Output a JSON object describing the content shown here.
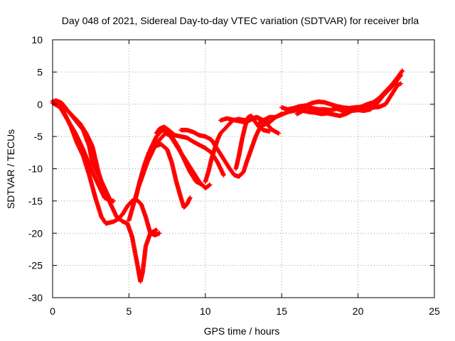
{
  "chart_data": {
    "type": "scatter",
    "title": "Day 048 of 2021, Sidereal Day-to-day VTEC variation (SDTVAR) for receiver brla",
    "xlabel": "GPS time / hours",
    "ylabel": "SDTVAR / TECUs",
    "xlim": [
      0,
      25
    ],
    "ylim": [
      -30,
      10
    ],
    "xticks": [
      0,
      5,
      10,
      15,
      20,
      25
    ],
    "yticks": [
      -30,
      -25,
      -20,
      -15,
      -10,
      -5,
      0,
      5,
      10
    ],
    "grid": true,
    "marker": "plus",
    "color": "#ff0000",
    "tracks": [
      {
        "points": [
          [
            0.0,
            0.5
          ],
          [
            0.4,
            0.3
          ],
          [
            0.8,
            -1.5
          ],
          [
            1.2,
            -3.5
          ],
          [
            1.6,
            -6.0
          ],
          [
            2.0,
            -8.0
          ],
          [
            2.4,
            -11.0
          ],
          [
            2.8,
            -14.5
          ],
          [
            3.2,
            -17.5
          ],
          [
            3.5,
            -18.5
          ],
          [
            4.0,
            -18.2
          ],
          [
            4.3,
            -17.8
          ],
          [
            4.6,
            -17.0
          ]
        ]
      },
      {
        "points": [
          [
            0.0,
            0.2
          ],
          [
            0.5,
            -0.5
          ],
          [
            1.0,
            -2.5
          ],
          [
            1.5,
            -4.5
          ],
          [
            2.0,
            -7.0
          ],
          [
            2.5,
            -10.0
          ],
          [
            3.0,
            -12.5
          ],
          [
            3.4,
            -14.5
          ],
          [
            3.8,
            -15.0
          ],
          [
            4.0,
            -15.0
          ]
        ]
      },
      {
        "points": [
          [
            0.2,
            0.6
          ],
          [
            0.6,
            0.2
          ],
          [
            1.0,
            -1.0
          ],
          [
            1.5,
            -2.5
          ],
          [
            2.0,
            -4.0
          ],
          [
            2.4,
            -6.5
          ],
          [
            2.6,
            -9.0
          ],
          [
            3.0,
            -11.0
          ],
          [
            3.4,
            -13.0
          ],
          [
            3.8,
            -15.5
          ],
          [
            4.2,
            -17.5
          ],
          [
            4.6,
            -18.2
          ],
          [
            4.9,
            -18.5
          ],
          [
            5.2,
            -20.5
          ],
          [
            5.4,
            -23.0
          ],
          [
            5.6,
            -25.5
          ],
          [
            5.75,
            -27.5
          ],
          [
            5.9,
            -26.0
          ],
          [
            6.1,
            -22.0
          ],
          [
            6.4,
            -20.0
          ],
          [
            6.8,
            -19.5
          ]
        ]
      },
      {
        "points": [
          [
            0.2,
            0.5
          ],
          [
            0.5,
            0.3
          ],
          [
            0.9,
            -0.8
          ],
          [
            1.4,
            -2.0
          ],
          [
            1.8,
            -3.0
          ],
          [
            2.2,
            -4.5
          ],
          [
            2.6,
            -6.5
          ],
          [
            2.8,
            -8.5
          ],
          [
            3.0,
            -10.5
          ],
          [
            3.2,
            -12.0
          ],
          [
            3.5,
            -13.5
          ],
          [
            3.8,
            -15.0
          ]
        ]
      },
      {
        "points": [
          [
            4.6,
            -17.0
          ],
          [
            4.9,
            -15.8
          ],
          [
            5.2,
            -15.0
          ],
          [
            5.5,
            -14.8
          ],
          [
            5.8,
            -15.5
          ],
          [
            6.1,
            -17.5
          ],
          [
            6.4,
            -20.0
          ],
          [
            6.7,
            -20.3
          ],
          [
            7.0,
            -20.0
          ]
        ]
      },
      {
        "points": [
          [
            5.0,
            -18.0
          ],
          [
            5.3,
            -15.5
          ],
          [
            5.6,
            -13.0
          ],
          [
            5.9,
            -11.0
          ],
          [
            6.2,
            -9.0
          ],
          [
            6.6,
            -7.0
          ],
          [
            7.0,
            -5.5
          ],
          [
            7.4,
            -4.5
          ],
          [
            7.8,
            -5.0
          ],
          [
            8.2,
            -6.5
          ],
          [
            8.6,
            -8.5
          ],
          [
            9.0,
            -10.5
          ],
          [
            9.4,
            -12.0
          ],
          [
            9.8,
            -12.5
          ]
        ]
      },
      {
        "points": [
          [
            5.4,
            -15.0
          ],
          [
            5.7,
            -12.0
          ],
          [
            6.0,
            -9.5
          ],
          [
            6.3,
            -7.5
          ],
          [
            6.7,
            -6.5
          ],
          [
            7.1,
            -6.2
          ],
          [
            7.5,
            -7.0
          ],
          [
            7.8,
            -9.0
          ],
          [
            8.1,
            -12.0
          ],
          [
            8.4,
            -14.5
          ],
          [
            8.6,
            -16.0
          ],
          [
            8.8,
            -15.5
          ],
          [
            9.0,
            -14.5
          ]
        ]
      },
      {
        "points": [
          [
            6.0,
            -10.0
          ],
          [
            6.4,
            -7.0
          ],
          [
            6.8,
            -5.0
          ],
          [
            7.2,
            -4.0
          ],
          [
            7.6,
            -4.5
          ],
          [
            8.0,
            -6.0
          ],
          [
            8.4,
            -7.5
          ],
          [
            8.8,
            -9.0
          ],
          [
            9.2,
            -10.5
          ],
          [
            9.6,
            -12.0
          ],
          [
            10.0,
            -13.0
          ],
          [
            10.3,
            -12.5
          ]
        ]
      },
      {
        "points": [
          [
            6.8,
            -4.5
          ],
          [
            7.0,
            -3.8
          ],
          [
            7.3,
            -3.5
          ],
          [
            7.6,
            -4.0
          ],
          [
            8.0,
            -4.8
          ],
          [
            8.4,
            -5.0
          ],
          [
            8.8,
            -5.2
          ],
          [
            9.2,
            -5.8
          ],
          [
            9.6,
            -6.3
          ],
          [
            10.0,
            -6.8
          ],
          [
            10.4,
            -7.5
          ],
          [
            10.8,
            -9.0
          ],
          [
            11.2,
            -11.0
          ]
        ]
      },
      {
        "points": [
          [
            8.4,
            -4.0
          ],
          [
            8.8,
            -4.0
          ],
          [
            9.2,
            -4.3
          ],
          [
            9.6,
            -4.8
          ],
          [
            10.0,
            -5.0
          ],
          [
            10.4,
            -5.5
          ],
          [
            10.8,
            -7.0
          ],
          [
            11.2,
            -8.5
          ],
          [
            11.6,
            -10.0
          ],
          [
            11.9,
            -11.0
          ],
          [
            12.2,
            -11.2
          ],
          [
            12.5,
            -10.5
          ],
          [
            12.7,
            -9.0
          ],
          [
            13.0,
            -7.0
          ],
          [
            13.3,
            -5.0
          ],
          [
            13.6,
            -3.5
          ],
          [
            14.0,
            -3.0
          ]
        ]
      },
      {
        "points": [
          [
            10.0,
            -12.0
          ],
          [
            10.2,
            -10.5
          ],
          [
            10.4,
            -8.5
          ],
          [
            10.6,
            -7.0
          ],
          [
            10.8,
            -5.5
          ],
          [
            11.0,
            -4.5
          ],
          [
            11.4,
            -3.5
          ],
          [
            11.8,
            -2.5
          ],
          [
            12.2,
            -2.3
          ],
          [
            12.6,
            -2.5
          ],
          [
            13.0,
            -2.3
          ],
          [
            13.4,
            -2.0
          ],
          [
            13.8,
            -2.5
          ],
          [
            14.2,
            -2.8
          ],
          [
            14.6,
            -2.0
          ],
          [
            15.0,
            -1.5
          ]
        ]
      },
      {
        "points": [
          [
            11.0,
            -2.5
          ],
          [
            11.4,
            -2.2
          ],
          [
            11.8,
            -2.4
          ],
          [
            12.2,
            -2.6
          ],
          [
            12.6,
            -2.8
          ],
          [
            12.9,
            -2.5
          ],
          [
            13.3,
            -2.0
          ],
          [
            13.7,
            -2.5
          ],
          [
            14.0,
            -3.0
          ],
          [
            14.4,
            -4.0
          ],
          [
            14.8,
            -4.5
          ]
        ]
      },
      {
        "points": [
          [
            12.0,
            -10.0
          ],
          [
            12.2,
            -8.0
          ],
          [
            12.4,
            -5.5
          ],
          [
            12.6,
            -3.5
          ],
          [
            12.8,
            -2.0
          ],
          [
            13.0,
            -1.8
          ],
          [
            13.2,
            -2.5
          ],
          [
            13.5,
            -3.5
          ],
          [
            13.8,
            -4.0
          ],
          [
            14.2,
            -4.2
          ]
        ]
      },
      {
        "points": [
          [
            13.5,
            -3.0
          ],
          [
            13.8,
            -2.5
          ],
          [
            14.2,
            -2.0
          ],
          [
            14.6,
            -2.0
          ],
          [
            15.0,
            -1.6
          ],
          [
            15.4,
            -1.2
          ],
          [
            15.8,
            -1.0
          ],
          [
            16.2,
            -0.8
          ],
          [
            16.6,
            -0.5
          ],
          [
            17.0,
            -0.6
          ],
          [
            17.4,
            -0.8
          ],
          [
            17.8,
            -0.8
          ],
          [
            18.2,
            -0.9
          ],
          [
            18.6,
            -0.7
          ],
          [
            19.0,
            -1.0
          ],
          [
            19.4,
            -1.2
          ],
          [
            19.8,
            -0.8
          ],
          [
            20.2,
            -0.5
          ],
          [
            20.6,
            -0.3
          ],
          [
            21.0,
            -0.5
          ],
          [
            21.4,
            -0.4
          ],
          [
            21.8,
            0.0
          ],
          [
            22.2,
            1.5
          ],
          [
            22.6,
            3.0
          ],
          [
            22.8,
            3.2
          ]
        ]
      },
      {
        "points": [
          [
            15.0,
            -0.5
          ],
          [
            15.4,
            -0.8
          ],
          [
            15.8,
            -0.6
          ],
          [
            16.2,
            -0.3
          ],
          [
            16.6,
            -0.2
          ],
          [
            17.0,
            0.2
          ],
          [
            17.4,
            0.4
          ],
          [
            17.8,
            0.3
          ],
          [
            18.2,
            0.0
          ],
          [
            18.6,
            -0.3
          ],
          [
            19.0,
            -0.5
          ],
          [
            19.4,
            -0.6
          ],
          [
            19.8,
            -0.5
          ],
          [
            20.2,
            -0.4
          ],
          [
            20.6,
            0.0
          ],
          [
            21.0,
            0.3
          ],
          [
            21.4,
            1.0
          ],
          [
            21.8,
            2.0
          ],
          [
            22.2,
            3.0
          ],
          [
            22.6,
            4.2
          ],
          [
            22.9,
            5.2
          ]
        ]
      },
      {
        "points": [
          [
            16.0,
            -1.5
          ],
          [
            16.4,
            -1.0
          ],
          [
            16.8,
            -1.2
          ],
          [
            17.2,
            -1.3
          ],
          [
            17.6,
            -1.5
          ],
          [
            18.0,
            -1.4
          ],
          [
            18.4,
            -1.6
          ],
          [
            18.8,
            -1.8
          ],
          [
            19.2,
            -1.5
          ],
          [
            19.6,
            -1.0
          ],
          [
            20.0,
            -0.9
          ],
          [
            20.4,
            -1.0
          ],
          [
            20.8,
            -0.8
          ],
          [
            21.2,
            0.0
          ],
          [
            21.6,
            1.2
          ],
          [
            22.0,
            2.2
          ],
          [
            22.4,
            3.2
          ],
          [
            22.8,
            4.5
          ]
        ]
      }
    ]
  }
}
